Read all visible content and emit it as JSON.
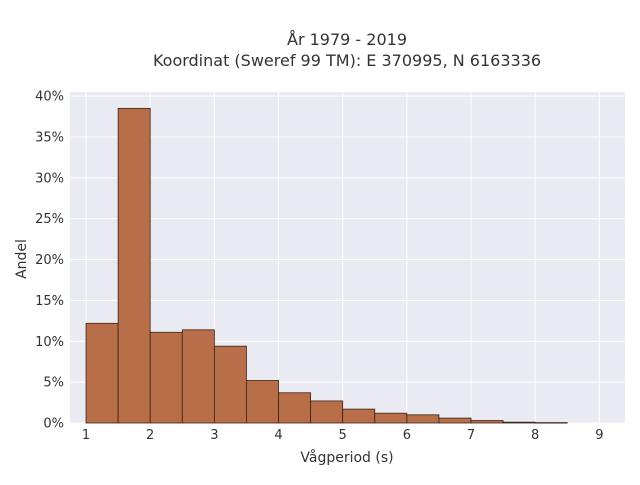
{
  "chart_data": {
    "type": "bar",
    "title_line1": "År 1979 - 2019",
    "title_line2": "Koordinat (Sweref 99 TM): E 370995, N 6163336",
    "xlabel": "Vågperiod (s)",
    "ylabel": "Andel",
    "xlim": [
      0.75,
      9.4
    ],
    "ylim": [
      0,
      0.405
    ],
    "x_ticks": [
      1,
      2,
      3,
      4,
      5,
      6,
      7,
      8,
      9
    ],
    "y_ticks": [
      0,
      0.05,
      0.1,
      0.15,
      0.2,
      0.25,
      0.3,
      0.35,
      0.4
    ],
    "y_tick_labels": [
      "0%",
      "5%",
      "10%",
      "15%",
      "20%",
      "25%",
      "30%",
      "35%",
      "40%"
    ],
    "grid": true,
    "bins": [
      {
        "start": 1.0,
        "end": 1.5,
        "value": 0.122
      },
      {
        "start": 1.5,
        "end": 2.0,
        "value": 0.385
      },
      {
        "start": 2.0,
        "end": 2.5,
        "value": 0.111
      },
      {
        "start": 2.5,
        "end": 3.0,
        "value": 0.114
      },
      {
        "start": 3.0,
        "end": 3.5,
        "value": 0.094
      },
      {
        "start": 3.5,
        "end": 4.0,
        "value": 0.052
      },
      {
        "start": 4.0,
        "end": 4.5,
        "value": 0.037
      },
      {
        "start": 4.5,
        "end": 5.0,
        "value": 0.027
      },
      {
        "start": 5.0,
        "end": 5.5,
        "value": 0.017
      },
      {
        "start": 5.5,
        "end": 6.0,
        "value": 0.012
      },
      {
        "start": 6.0,
        "end": 6.5,
        "value": 0.01
      },
      {
        "start": 6.5,
        "end": 7.0,
        "value": 0.006
      },
      {
        "start": 7.0,
        "end": 7.5,
        "value": 0.003
      },
      {
        "start": 7.5,
        "end": 8.0,
        "value": 0.001
      },
      {
        "start": 8.0,
        "end": 8.5,
        "value": 0.0005
      }
    ],
    "colors": {
      "bar_fill": "#b86e49",
      "bar_edge": "#3a2414",
      "plot_background": "#eaeaf2",
      "grid": "#ffffff"
    }
  }
}
